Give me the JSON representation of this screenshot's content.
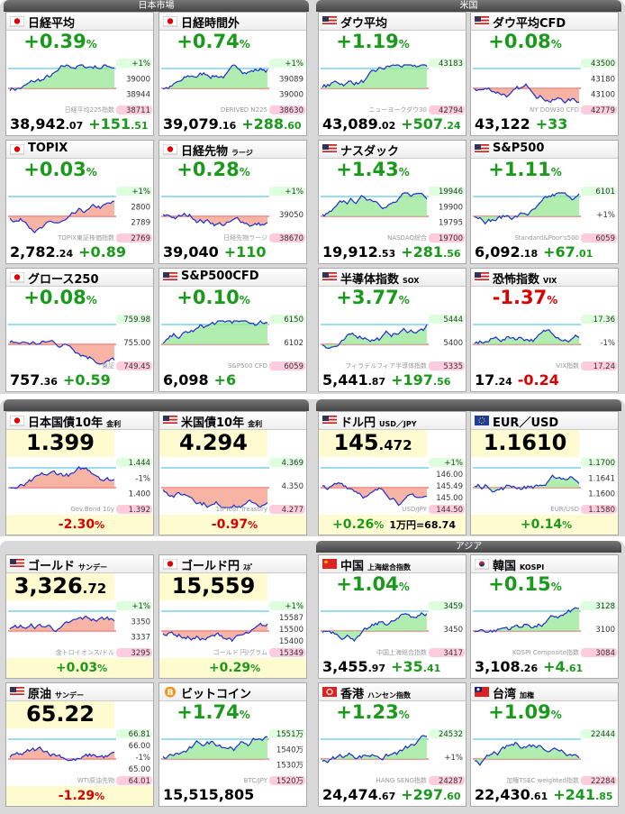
{
  "sections": [
    {
      "headers": [
        {
          "text": "日本市場",
          "side": "left"
        },
        {
          "text": "米国",
          "side": "right"
        }
      ],
      "tiles": [
        {
          "name": "日経平均",
          "flag": "jp",
          "style": "normal",
          "tone": "up",
          "fill": "up",
          "top": [
            "+0.39",
            "%"
          ],
          "bottom": [
            [
              "38,942",
              ".07"
            ],
            [
              "+151",
              ".51"
            ]
          ],
          "labels": [
            "+1%",
            "39000",
            "38944",
            "38711"
          ],
          "watermark": "日経平均225指数"
        },
        {
          "name": "日経時間外",
          "flag": "jp",
          "style": "normal",
          "tone": "up",
          "fill": "up",
          "top": [
            "+0.74",
            "%"
          ],
          "bottom": [
            [
              "39,079",
              ".16"
            ],
            [
              "+288",
              ".60"
            ]
          ],
          "labels": [
            "+1%",
            "39089",
            "39000",
            "38630"
          ],
          "watermark": "DERIVED N225"
        },
        {
          "name": "ダウ平均",
          "flag": "us",
          "style": "normal",
          "tone": "up",
          "fill": "up",
          "top": [
            "+1.19",
            "%"
          ],
          "bottom": [
            [
              "43,089",
              ".02"
            ],
            [
              "+507",
              ".24"
            ]
          ],
          "labels": [
            "43183",
            "42794"
          ],
          "watermark": "ニューヨークダウ30"
        },
        {
          "name": "ダウ平均CFD",
          "flag": "us",
          "style": "normal",
          "tone": "up",
          "fill": "down",
          "top": [
            "+0.08",
            "%"
          ],
          "bottom": [
            [
              "43,122"
            ],
            [
              "+33"
            ]
          ],
          "labels": [
            "43500",
            "43180",
            "43100",
            "42779"
          ],
          "watermark": "NY DOW30 CFD"
        },
        {
          "name": "TOPIX",
          "flag": "jp",
          "style": "normal",
          "tone": "up",
          "fill": "down",
          "top": [
            "+0.03",
            "%"
          ],
          "bottom": [
            [
              "2,782",
              ".24"
            ],
            [
              "+0.89"
            ]
          ],
          "labels": [
            "+1%",
            "2800",
            "2789",
            "2769"
          ],
          "watermark": "TOPIX東証株価指数"
        },
        {
          "name": "日経先物",
          "sub": "ラージ",
          "flag": "jp",
          "style": "normal",
          "tone": "up",
          "fill": "down",
          "top": [
            "+0.28",
            "%"
          ],
          "bottom": [
            [
              "39,040"
            ],
            [
              "+110"
            ]
          ],
          "labels": [
            "+1%",
            "39050",
            "38670"
          ],
          "watermark": "日経先物ラージ"
        },
        {
          "name": "ナスダック",
          "flag": "us",
          "style": "normal",
          "tone": "up",
          "fill": "up",
          "top": [
            "+1.43",
            "%"
          ],
          "bottom": [
            [
              "19,912",
              ".53"
            ],
            [
              "+281",
              ".56"
            ]
          ],
          "labels": [
            "19946",
            "19900",
            "19795",
            "19700"
          ],
          "watermark": "NASDAQ総合"
        },
        {
          "name": "S&P500",
          "flag": "us",
          "style": "normal",
          "tone": "up",
          "fill": "up",
          "top": [
            "+1.11",
            "%"
          ],
          "bottom": [
            [
              "6,092",
              ".18"
            ],
            [
              "+67",
              ".01"
            ]
          ],
          "labels": [
            "6101",
            "+1%",
            "6059"
          ],
          "watermark": "Standard&Poor's500"
        },
        {
          "name": "グロース250",
          "flag": "jp",
          "style": "normal",
          "tone": "up",
          "fill": "down",
          "top": [
            "+0.08",
            "%"
          ],
          "bottom": [
            [
              "757",
              ".36"
            ],
            [
              "+0.59"
            ]
          ],
          "labels": [
            "759.98",
            "755.00",
            "749.45"
          ],
          "watermark": "東証"
        },
        {
          "name": "S&P500CFD",
          "flag": "us",
          "style": "normal",
          "tone": "up",
          "fill": "up",
          "top": [
            "+0.10",
            "%"
          ],
          "bottom": [
            [
              "6,098"
            ],
            [
              "+6"
            ]
          ],
          "labels": [
            "6150",
            "6102",
            "6059"
          ],
          "watermark": "S&P500 CFD"
        },
        {
          "name": "半導体指数",
          "sub": "SOX",
          "flag": "us",
          "style": "normal",
          "tone": "up",
          "fill": "up",
          "top": [
            "+3.77",
            "%"
          ],
          "bottom": [
            [
              "5,441",
              ".87"
            ],
            [
              "+197",
              ".56"
            ]
          ],
          "labels": [
            "5444",
            "5400",
            "5335"
          ],
          "watermark": "フィラデルフィア半導体指数"
        },
        {
          "name": "恐怖指数",
          "sub": "VIX",
          "flag": "us",
          "style": "normal",
          "tone": "down",
          "fill": "up",
          "top": [
            "-1.37",
            "%"
          ],
          "bottom": [
            [
              "17",
              ".24"
            ],
            [
              "-0.24"
            ]
          ],
          "labels": [
            "17.36",
            "-1%",
            "17.24"
          ],
          "watermark": "VIX指数"
        }
      ]
    },
    {
      "headers": [],
      "tiles": [
        {
          "name": "日本国債10年",
          "sub": "金利",
          "flag": "jp",
          "style": "quote",
          "tone": "down",
          "fill": "down",
          "top": [
            "1.399"
          ],
          "bottom": [
            [
              "-2.30",
              "%"
            ]
          ],
          "labels": [
            "1.444",
            "-1%",
            "1.400",
            "1.392"
          ],
          "watermark": "Gov.Bond 10y"
        },
        {
          "name": "米国債10年",
          "sub": "金利",
          "flag": "us",
          "style": "quote",
          "tone": "down",
          "fill": "down",
          "top": [
            "4.294"
          ],
          "bottom": [
            [
              "-0.97",
              "%"
            ]
          ],
          "labels": [
            "4.369",
            "4.350",
            "4.277"
          ],
          "watermark": "10-Year Treasury"
        },
        {
          "name": "ドル円",
          "sub": "USD／JPY",
          "flag": "us",
          "style": "quote",
          "tone": "up",
          "fill": "down",
          "top": [
            "145",
            ".472"
          ],
          "bottom": [
            [
              "+0.26",
              "%"
            ],
            [
              "1万円=68.74"
            ]
          ],
          "labels": [
            "+1%",
            "146.00",
            "145.49",
            "145.00",
            "144.50"
          ],
          "watermark": "USD/JPY"
        },
        {
          "name": "EUR／USD",
          "flag": "eu",
          "style": "quote",
          "tone": "up",
          "fill": "up",
          "top": [
            "1.1610"
          ],
          "bottom": [
            [
              "+0.14",
              "%"
            ]
          ],
          "labels": [
            "1.1700",
            "1.1641",
            "1.1600",
            "1.1580"
          ],
          "watermark": "EUR/USD"
        }
      ]
    },
    {
      "headers": [
        {
          "text": "アジア",
          "side": "right"
        }
      ],
      "tiles": [
        {
          "name": "ゴールド",
          "sub": "サンデー",
          "flag": "us",
          "style": "quote",
          "tone": "up",
          "fill": "down",
          "top": [
            "3,326",
            ".72"
          ],
          "bottom": [
            [
              "+0.03",
              "%"
            ]
          ],
          "labels": [
            "+1%",
            "3350",
            "3337",
            "3295"
          ],
          "watermark": "金トロイオンス/ドル"
        },
        {
          "name": "ゴールド円",
          "sub": "ｽﾎﾟ",
          "flag": "jp",
          "style": "quote",
          "tone": "up",
          "fill": "down",
          "top": [
            "15,559"
          ],
          "bottom": [
            [
              "+0.29",
              "%"
            ]
          ],
          "labels": [
            "+1%",
            "15587",
            "15500",
            "15400",
            "15349"
          ],
          "watermark": "ゴールド 円/グラム"
        },
        {
          "name": "中国",
          "sub": "上海総合指数",
          "flag": "cn",
          "style": "normal",
          "tone": "up",
          "fill": "up",
          "top": [
            "+1.04",
            "%"
          ],
          "bottom": [
            [
              "3,455",
              ".97"
            ],
            [
              "+35",
              ".41"
            ]
          ],
          "labels": [
            "3459",
            "3450",
            "3417"
          ],
          "watermark": "中国上海総合指数"
        },
        {
          "name": "韓国",
          "sub": "KOSPI",
          "flag": "kr",
          "style": "normal",
          "tone": "up",
          "fill": "up",
          "top": [
            "+0.15",
            "%"
          ],
          "bottom": [
            [
              "3,108",
              ".26"
            ],
            [
              "+4",
              ".61"
            ]
          ],
          "labels": [
            "3128",
            "3100",
            "3084"
          ],
          "watermark": "KOSPI Composite指数"
        },
        {
          "name": "原油",
          "sub": "サンデー",
          "flag": "us",
          "style": "quote",
          "tone": "down",
          "fill": "down",
          "top": [
            "65.22"
          ],
          "bottom": [
            [
              "-1.29",
              "%"
            ]
          ],
          "labels": [
            "66.81",
            "66.00",
            "-1%",
            "65.00",
            "64.01"
          ],
          "watermark": "WTI原油先物"
        },
        {
          "name": "ビットコイン",
          "flag": "btc",
          "style": "normal",
          "tone": "up",
          "fill": "up",
          "top": [
            "+1.74",
            "%"
          ],
          "bottom": [
            [
              "15,515,805"
            ]
          ],
          "labels": [
            "1551万",
            "1540万",
            "1530万",
            "1520万"
          ],
          "watermark": "BTC/JPY"
        },
        {
          "name": "香港",
          "sub": "ハンセン指数",
          "flag": "hk",
          "style": "normal",
          "tone": "up",
          "fill": "up",
          "top": [
            "+1.23",
            "%"
          ],
          "bottom": [
            [
              "24,474",
              ".67"
            ],
            [
              "+297",
              ".60"
            ]
          ],
          "labels": [
            "24532",
            "+1%",
            "24287"
          ],
          "watermark": "HANG SENG指数"
        },
        {
          "name": "台湾",
          "sub": "加権",
          "flag": "tw",
          "style": "normal",
          "tone": "up",
          "fill": "up",
          "top": [
            "+1.09",
            "%"
          ],
          "bottom": [
            [
              "22,430",
              ".61"
            ],
            [
              "+241",
              ".85"
            ]
          ],
          "labels": [
            "22444",
            "22284"
          ],
          "watermark": "加権TSEC weighted指数"
        }
      ]
    }
  ]
}
